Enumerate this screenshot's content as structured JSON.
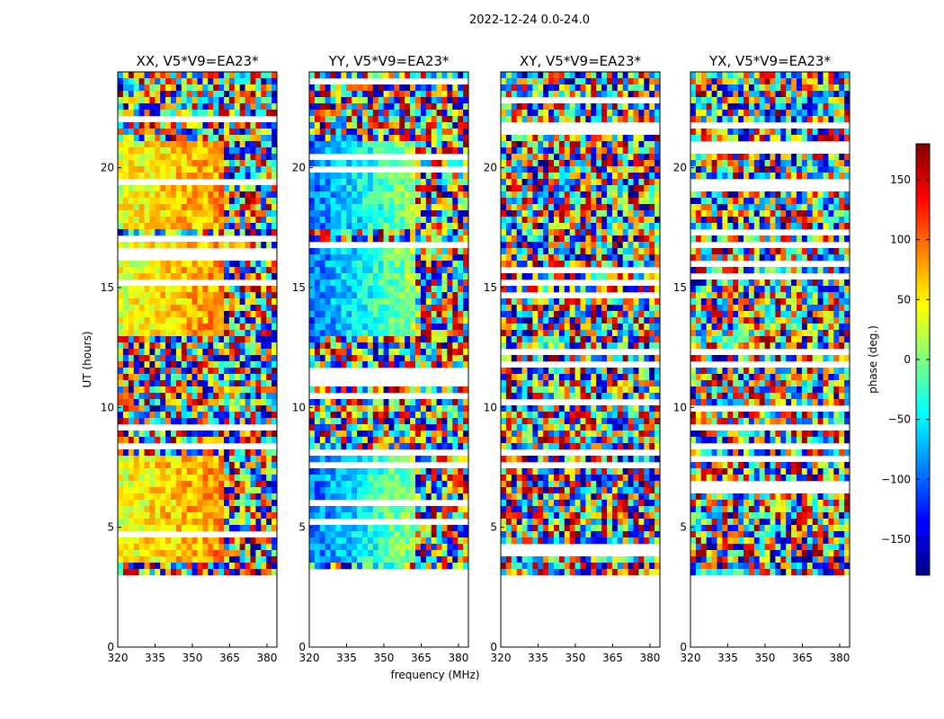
{
  "chart_data": {
    "type": "heatmap",
    "title": "2022-12-24 0.0-24.0",
    "xlabel": "frequency (MHz)",
    "ylabel": "UT (hours)",
    "xlim": [
      320,
      384
    ],
    "ylim": [
      0,
      24
    ],
    "x_ticks": [
      "320",
      "335",
      "350",
      "365",
      "380"
    ],
    "y_ticks": [
      "0",
      "5",
      "10",
      "15",
      "20"
    ],
    "panels": [
      {
        "title": "XX, V5*V9=EA23*",
        "pol": "XX",
        "coherent": true,
        "base_phase": 35
      },
      {
        "title": "YY, V5*V9=EA23*",
        "pol": "YY",
        "coherent": true,
        "base_phase": -100
      },
      {
        "title": "XY, V5*V9=EA23*",
        "pol": "XY",
        "coherent": false,
        "base_phase": 0
      },
      {
        "title": "YX, V5*V9=EA23*",
        "pol": "YX",
        "coherent": false,
        "base_phase": 0
      }
    ],
    "data_start_hours": 3.0,
    "coherent_band_mhz": [
      320,
      362
    ],
    "colorbar": {
      "label": "phase (deg.)",
      "range": [
        -180,
        180
      ],
      "ticks": [
        "150",
        "100",
        "50",
        "0",
        "−50",
        "−100",
        "−150"
      ],
      "colormap": "jet"
    }
  }
}
